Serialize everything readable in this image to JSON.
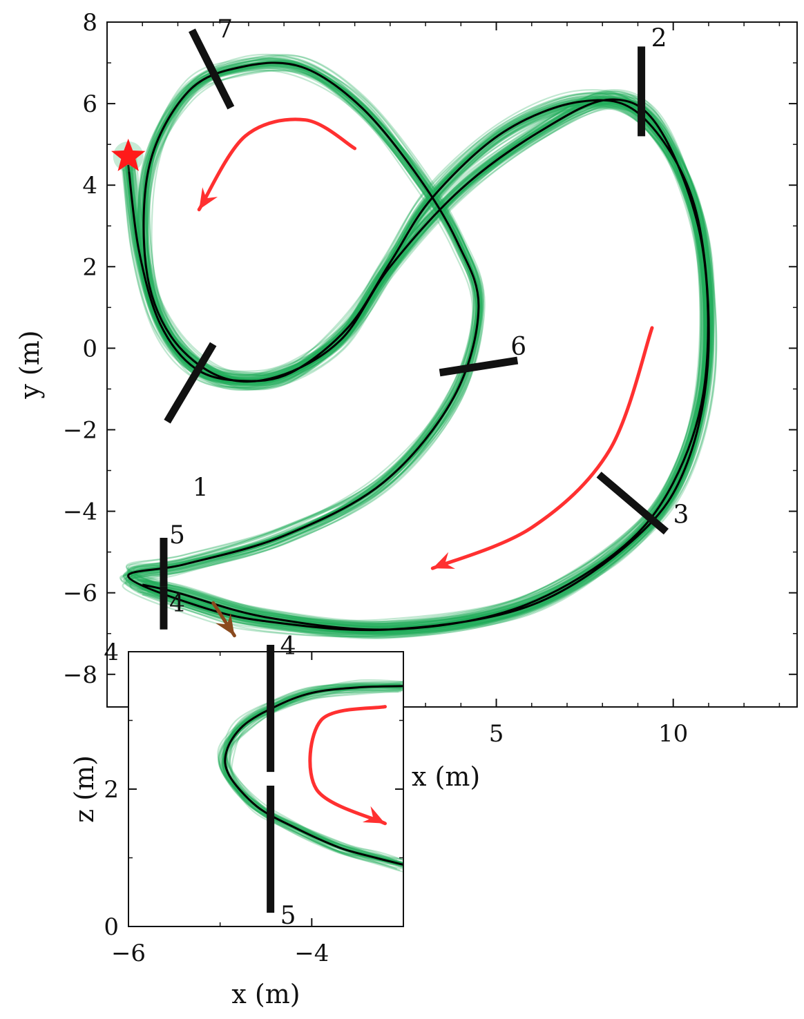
{
  "chart_data": [
    {
      "type": "line",
      "xlabel": "x (m)",
      "ylabel": "y (m)",
      "xlim": [
        -6,
        13.5
      ],
      "ylim": [
        -8.8,
        8
      ],
      "xticks": [
        5,
        10
      ],
      "yticks": [
        -8,
        -6,
        -4,
        -2,
        0,
        2,
        4,
        6,
        8
      ],
      "grid": false,
      "start_marker": {
        "x": -5.4,
        "y": 4.7,
        "color": "#ff1a1a"
      },
      "colors": {
        "samples": "#1fae5a",
        "mean": "#000000",
        "arrow": "#ff3030",
        "gate": "#111111"
      },
      "series": [
        {
          "points": [
            [
              -5.4,
              4.5
            ],
            [
              -5.1,
              2.4
            ],
            [
              -4.5,
              0.6
            ],
            [
              -3.5,
              -0.5
            ],
            [
              -2.2,
              -0.8
            ],
            [
              -0.8,
              -0.6
            ],
            [
              0.8,
              0.5
            ],
            [
              2.0,
              2.1
            ],
            [
              3.2,
              3.7
            ],
            [
              5.2,
              5.3
            ],
            [
              7.4,
              6.05
            ],
            [
              9.1,
              5.7
            ],
            [
              10.6,
              3.5
            ],
            [
              11.0,
              0.0
            ],
            [
              10.4,
              -2.8
            ],
            [
              9.0,
              -4.6
            ],
            [
              6.0,
              -6.3
            ],
            [
              2.0,
              -6.9
            ],
            [
              -1.5,
              -6.7
            ],
            [
              -3.5,
              -6.3
            ],
            [
              -5.4,
              -5.6
            ],
            [
              -3.8,
              -5.3
            ],
            [
              -1.0,
              -4.6
            ],
            [
              1.8,
              -3.3
            ],
            [
              3.8,
              -1.2
            ],
            [
              4.5,
              1.0
            ],
            [
              3.9,
              2.6
            ],
            [
              2.8,
              4.2
            ],
            [
              1.2,
              5.9
            ],
            [
              -0.5,
              6.9
            ],
            [
              -2.2,
              6.9
            ],
            [
              -3.7,
              6.3
            ],
            [
              -4.8,
              4.5
            ],
            [
              -4.9,
              2.0
            ],
            [
              -4.2,
              0.3
            ],
            [
              -2.8,
              -0.7
            ],
            [
              -1.2,
              -0.7
            ],
            [
              0.6,
              0.2
            ],
            [
              2.0,
              2.0
            ],
            [
              4.0,
              3.9
            ],
            [
              6.2,
              5.3
            ],
            [
              8.2,
              6.1
            ],
            [
              9.6,
              5.4
            ],
            [
              10.8,
              2.6
            ],
            [
              10.9,
              -0.8
            ],
            [
              10.0,
              -3.3
            ],
            [
              8.4,
              -5.0
            ],
            [
              5.5,
              -6.4
            ],
            [
              2.0,
              -6.9
            ],
            [
              -1.5,
              -6.6
            ],
            [
              -4.0,
              -6.0
            ],
            [
              -5.0,
              -5.8
            ]
          ]
        }
      ],
      "gates": [
        {
          "label": "1",
          "x1": -4.3,
          "y1": -1.8,
          "x2": -3.0,
          "y2": 0.1
        },
        {
          "label": "2",
          "x1": 9.1,
          "y1": 5.2,
          "x2": 9.1,
          "y2": 7.4
        },
        {
          "label": "3",
          "x1": 7.9,
          "y1": -3.1,
          "x2": 9.8,
          "y2": -4.5
        },
        {
          "label": "4",
          "x1": -4.4,
          "y1": -5.85,
          "x2": -4.4,
          "y2": -6.9
        },
        {
          "label": "5",
          "x1": -4.4,
          "y1": -4.65,
          "x2": -4.4,
          "y2": -5.85
        },
        {
          "label": "6",
          "x1": 3.4,
          "y1": -0.6,
          "x2": 5.6,
          "y2": -0.3
        },
        {
          "label": "7",
          "x1": -3.6,
          "y1": 7.8,
          "x2": -2.5,
          "y2": 5.9
        }
      ],
      "arrows": [
        {
          "points": [
            [
              1.0,
              4.9
            ],
            [
              -0.4,
              5.6
            ],
            [
              -2.1,
              5.2
            ],
            [
              -3.4,
              3.4
            ]
          ]
        },
        {
          "points": [
            [
              9.4,
              0.5
            ],
            [
              8.2,
              -2.5
            ],
            [
              6.0,
              -4.4
            ],
            [
              3.2,
              -5.4
            ]
          ]
        },
        {
          "points": [
            [
              -3.0,
              -6.25
            ],
            [
              -2.4,
              -7.05
            ]
          ],
          "color": "#8a4a1e"
        }
      ]
    },
    {
      "type": "line",
      "xlabel": "x (m)",
      "ylabel": "z (m)",
      "xlim": [
        -6,
        -3
      ],
      "ylim": [
        0,
        4
      ],
      "xticks": [
        -6,
        -4
      ],
      "yticks": [
        0,
        2,
        4
      ],
      "grid": false,
      "series": [
        {
          "points": [
            [
              -3,
              3.5
            ],
            [
              -3.5,
              3.48
            ],
            [
              -4.0,
              3.4
            ],
            [
              -4.4,
              3.2
            ],
            [
              -4.75,
              2.92
            ],
            [
              -4.93,
              2.55
            ],
            [
              -4.9,
              2.2
            ],
            [
              -4.6,
              1.75
            ],
            [
              -4.2,
              1.45
            ],
            [
              -3.7,
              1.15
            ],
            [
              -3.3,
              1.0
            ],
            [
              -3,
              0.9
            ]
          ]
        }
      ],
      "gates": [
        {
          "label": "4",
          "x1": -4.45,
          "y1": 2.25,
          "x2": -4.45,
          "y2": 4.1
        },
        {
          "label": "5",
          "x1": -4.45,
          "y1": 0.2,
          "x2": -4.45,
          "y2": 2.05
        }
      ],
      "arrows": [
        {
          "points": [
            [
              -3.2,
              3.2
            ],
            [
              -3.9,
              3.0
            ],
            [
              -3.95,
              2.0
            ],
            [
              -3.2,
              1.5
            ]
          ]
        }
      ]
    }
  ]
}
